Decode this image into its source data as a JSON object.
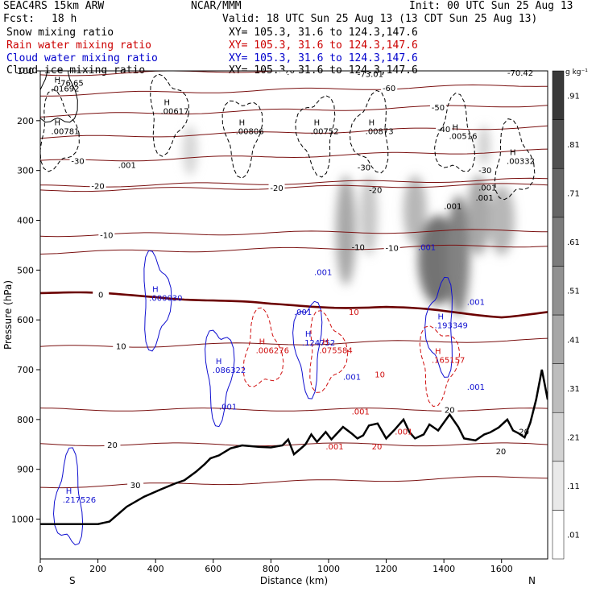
{
  "header": {
    "model": "SEAC4RS 15km ARW",
    "center": "NCAR/MMM",
    "init": "Init: 00 UTC Sun 25 Aug 13",
    "fcst_label": "Fcst:",
    "fcst_value": "18 h",
    "valid": "Valid: 18 UTC Sun 25 Aug 13 (13 CDT Sun 25 Aug 13)"
  },
  "fields": [
    {
      "name": "Snow mixing ratio",
      "xy": "XY= 105.3, 31.6 to 124.3,147.6",
      "color": "#000000"
    },
    {
      "name": "Rain water mixing ratio",
      "xy": "XY= 105.3, 31.6 to 124.3,147.6",
      "color": "#cc0000"
    },
    {
      "name": "Cloud water mixing ratio",
      "xy": "XY= 105.3, 31.6 to 124.3,147.6",
      "color": "#0000cc"
    },
    {
      "name": "Cloud ice mixing ratio",
      "xy": "XY= 105.3, 31.6 to 124.3,147.6",
      "color": "#000000"
    }
  ],
  "colors": {
    "temperature": "#7a1010",
    "freezing_level": "#6b0000",
    "rain": "#d01010",
    "cloud_water": "#1010d0",
    "ice": "#000000",
    "terrain": "#000000"
  },
  "chart_data": {
    "type": "heatmap",
    "title": "",
    "xlabel": "Distance (km)",
    "ylabel": "Pressure (hPa)",
    "xlim": [
      0,
      1760
    ],
    "ylim": [
      1080,
      100
    ],
    "x_ticks": [
      0,
      200,
      400,
      600,
      800,
      1000,
      1200,
      1400,
      1600
    ],
    "y_ticks": [
      100,
      200,
      300,
      400,
      500,
      600,
      700,
      800,
      900,
      1000
    ],
    "end_labels": {
      "left": "S",
      "right": "N"
    },
    "colorbar": {
      "unit": "g kg⁻¹",
      "ticks": [
        ".01",
        ".11",
        ".21",
        ".31",
        ".41",
        ".51",
        ".61",
        ".71",
        ".81",
        ".91"
      ]
    },
    "terrain": [
      [
        0,
        1010
      ],
      [
        100,
        1010
      ],
      [
        200,
        1010
      ],
      [
        240,
        1005
      ],
      [
        300,
        975
      ],
      [
        360,
        955
      ],
      [
        420,
        940
      ],
      [
        470,
        928
      ],
      [
        500,
        922
      ],
      [
        540,
        905
      ],
      [
        570,
        890
      ],
      [
        590,
        878
      ],
      [
        620,
        872
      ],
      [
        660,
        858
      ],
      [
        700,
        852
      ],
      [
        760,
        855
      ],
      [
        800,
        856
      ],
      [
        840,
        852
      ],
      [
        860,
        840
      ],
      [
        880,
        870
      ],
      [
        900,
        860
      ],
      [
        920,
        850
      ],
      [
        940,
        830
      ],
      [
        960,
        845
      ],
      [
        990,
        825
      ],
      [
        1010,
        840
      ],
      [
        1050,
        815
      ],
      [
        1080,
        828
      ],
      [
        1100,
        838
      ],
      [
        1120,
        832
      ],
      [
        1140,
        812
      ],
      [
        1170,
        808
      ],
      [
        1200,
        838
      ],
      [
        1230,
        820
      ],
      [
        1260,
        800
      ],
      [
        1280,
        825
      ],
      [
        1300,
        838
      ],
      [
        1330,
        830
      ],
      [
        1350,
        810
      ],
      [
        1380,
        822
      ],
      [
        1420,
        790
      ],
      [
        1450,
        815
      ],
      [
        1470,
        838
      ],
      [
        1490,
        840
      ],
      [
        1510,
        842
      ],
      [
        1540,
        830
      ],
      [
        1560,
        826
      ],
      [
        1590,
        816
      ],
      [
        1620,
        800
      ],
      [
        1640,
        822
      ],
      [
        1660,
        828
      ],
      [
        1680,
        836
      ],
      [
        1700,
        806
      ],
      [
        1720,
        760
      ],
      [
        1740,
        700
      ],
      [
        1760,
        760
      ]
    ],
    "temperature_isotherms": [
      {
        "label": "-70",
        "y_at": [
          [
            0,
            108
          ],
          [
            1760,
            88
          ]
        ],
        "label_x": 860
      },
      {
        "label": "-60",
        "y_at": [
          [
            0,
            148
          ],
          [
            1760,
            128
          ]
        ],
        "label_x": 1210
      },
      {
        "label": "-50",
        "y_at": [
          [
            0,
            190
          ],
          [
            1760,
            168
          ]
        ],
        "label_x": 1380
      },
      {
        "label": "-40",
        "y_at": [
          [
            0,
            235
          ],
          [
            1760,
            212
          ]
        ],
        "label_x": 1400
      },
      {
        "label": "-30",
        "y_at": [
          [
            0,
            282
          ],
          [
            1760,
            260
          ]
        ],
        "label_x": 130
      },
      {
        "label": "-20",
        "y_at": [
          [
            0,
            332
          ],
          [
            1760,
            318
          ]
        ],
        "label_x": 200
      },
      {
        "label": "-20",
        "y_at": [
          [
            0,
            340
          ],
          [
            1760,
            328
          ]
        ],
        "label_x": 820
      },
      {
        "label": "-10",
        "y_at": [
          [
            0,
            430
          ],
          [
            1760,
            420
          ]
        ],
        "label_x": 230
      },
      {
        "label": "-10",
        "y_at": [
          [
            0,
            465
          ],
          [
            1760,
            450
          ]
        ],
        "label_x": 1220
      },
      {
        "label": "0",
        "y_at": [
          [
            0,
            545
          ],
          [
            400,
            552
          ],
          [
            800,
            570
          ],
          [
            1200,
            575
          ],
          [
            1600,
            592
          ],
          [
            1760,
            585
          ]
        ],
        "label_x": 210
      },
      {
        "label": "10",
        "y_at": [
          [
            0,
            655
          ],
          [
            1760,
            640
          ]
        ],
        "label_x": 280
      },
      {
        "label": "20",
        "y_at": [
          [
            0,
            780
          ],
          [
            1760,
            780
          ]
        ],
        "label_x": 1420
      },
      {
        "label": "20",
        "y_at": [
          [
            0,
            850
          ],
          [
            1760,
            850
          ]
        ],
        "label_x": 250
      },
      {
        "label": "30",
        "y_at": [
          [
            0,
            935
          ],
          [
            1760,
            915
          ]
        ],
        "label_x": 330
      }
    ],
    "freezing_level_hpa": 570,
    "maxima": [
      {
        "series": "snow",
        "label": ".01692",
        "x": 60,
        "p": 140
      },
      {
        "series": "ice",
        "label": ".00781",
        "x": 60,
        "p": 225
      },
      {
        "series": "ice",
        "label": ".00617",
        "x": 440,
        "p": 185
      },
      {
        "series": "ice",
        "label": ".00806",
        "x": 700,
        "p": 225
      },
      {
        "series": "ice",
        "label": ".00752",
        "x": 960,
        "p": 225
      },
      {
        "series": "ice",
        "label": ".00873",
        "x": 1150,
        "p": 225
      },
      {
        "series": "ice",
        "label": ".00516",
        "x": 1440,
        "p": 235
      },
      {
        "series": "ice",
        "label": ".00332",
        "x": 1640,
        "p": 285
      },
      {
        "series": "cloud",
        "label": ".000030",
        "x": 400,
        "p": 560
      },
      {
        "series": "cloud",
        "label": ".086322",
        "x": 620,
        "p": 705
      },
      {
        "series": "cloud",
        "label": ".124752",
        "x": 930,
        "p": 650
      },
      {
        "series": "cloud",
        "label": ".193349",
        "x": 1390,
        "p": 615
      },
      {
        "series": "cloud",
        "label": ".217526",
        "x": 100,
        "p": 965
      },
      {
        "series": "rain",
        "label": ".006276",
        "x": 770,
        "p": 665
      },
      {
        "series": "rain",
        "label": ".075584",
        "x": 990,
        "p": 665
      },
      {
        "series": "rain",
        "label": ".165157",
        "x": 1380,
        "p": 685
      }
    ],
    "contour_labels": [
      {
        "series": "ice",
        "label": "-76.65",
        "x": 60,
        "p": 130
      },
      {
        "series": "ice",
        "label": "-73.01",
        "x": 1100,
        "p": 112
      },
      {
        "series": "ice",
        "label": "-70.42",
        "x": 1620,
        "p": 110
      },
      {
        "series": "ice",
        "label": ".001",
        "x": 270,
        "p": 295
      },
      {
        "series": "ice",
        "label": ".001",
        "x": 1400,
        "p": 377
      },
      {
        "series": "ice",
        "label": ".001",
        "x": 1510,
        "p": 360
      },
      {
        "series": "cloud",
        "label": ".001",
        "x": 950,
        "p": 510
      },
      {
        "series": "cloud",
        "label": ".001",
        "x": 880,
        "p": 590
      },
      {
        "series": "cloud",
        "label": ".001",
        "x": 1310,
        "p": 460
      },
      {
        "series": "cloud",
        "label": ".001",
        "x": 1480,
        "p": 570
      },
      {
        "series": "cloud",
        "label": ".001",
        "x": 1050,
        "p": 720
      },
      {
        "series": "cloud",
        "label": ".001",
        "x": 620,
        "p": 780
      },
      {
        "series": "cloud",
        "label": ".001",
        "x": 1480,
        "p": 740
      },
      {
        "series": "rain",
        "label": ".001",
        "x": 990,
        "p": 860
      },
      {
        "series": "rain",
        "label": ".001",
        "x": 1080,
        "p": 790
      },
      {
        "series": "rain",
        "label": ".001",
        "x": 1230,
        "p": 830
      },
      {
        "series": "rain",
        "label": "10",
        "x": 1070,
        "p": 590
      },
      {
        "series": "rain",
        "label": "10",
        "x": 1160,
        "p": 715
      },
      {
        "series": "rain",
        "label": "20",
        "x": 1150,
        "p": 860
      },
      {
        "series": "ice",
        "label": "-10",
        "x": 1080,
        "p": 460
      },
      {
        "series": "ice",
        "label": "-20",
        "x": 1140,
        "p": 345
      },
      {
        "series": "ice",
        "label": "-30",
        "x": 1100,
        "p": 300
      },
      {
        "series": "ice",
        "label": "-30",
        "x": 1520,
        "p": 305
      },
      {
        "series": "ice",
        "label": ".001",
        "x": 1520,
        "p": 340
      },
      {
        "series": "ice",
        "label": "20",
        "x": 1660,
        "p": 830
      },
      {
        "series": "ice",
        "label": "20",
        "x": 1580,
        "p": 870
      }
    ],
    "snow_blobs": [
      {
        "x": 520,
        "p": 260,
        "rx": 25,
        "rp": 50,
        "value": 0.15
      },
      {
        "x": 1060,
        "p": 420,
        "rx": 35,
        "rp": 110,
        "value": 0.45
      },
      {
        "x": 1140,
        "p": 390,
        "rx": 30,
        "rp": 80,
        "value": 0.25
      },
      {
        "x": 1300,
        "p": 380,
        "rx": 40,
        "rp": 70,
        "value": 0.35
      },
      {
        "x": 1380,
        "p": 480,
        "rx": 70,
        "rp": 90,
        "value": 0.8
      },
      {
        "x": 1450,
        "p": 470,
        "rx": 40,
        "rp": 120,
        "value": 0.7
      },
      {
        "x": 1520,
        "p": 390,
        "rx": 40,
        "rp": 80,
        "value": 0.45
      },
      {
        "x": 1600,
        "p": 400,
        "rx": 45,
        "rp": 70,
        "value": 0.35
      },
      {
        "x": 1540,
        "p": 250,
        "rx": 20,
        "rp": 40,
        "value": 0.2
      }
    ],
    "series": [
      {
        "name": "Snow mixing ratio"
      },
      {
        "name": "Rain water mixing ratio"
      },
      {
        "name": "Cloud water mixing ratio"
      },
      {
        "name": "Cloud ice mixing ratio"
      }
    ]
  }
}
